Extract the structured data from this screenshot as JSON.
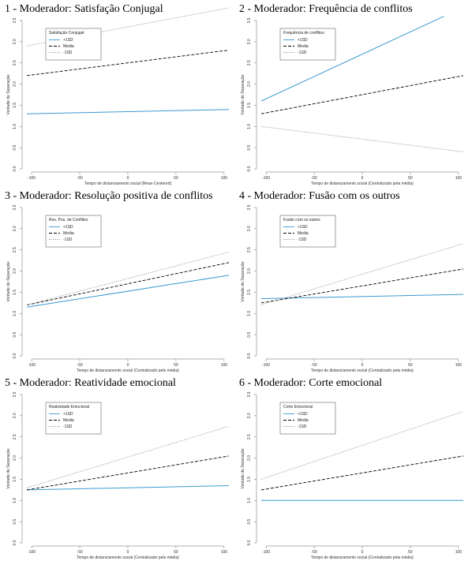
{
  "chart_data": [
    {
      "type": "line",
      "title": "1 - Moderador: Satisfação Conjugal",
      "xlabel": "Tempo de distanciamento social (Mean Centered)",
      "ylabel": "Vontade de Separação",
      "xlim": [
        -105,
        105
      ],
      "ylim": [
        0,
        3.5
      ],
      "xticks": [
        "-100",
        "-50",
        "0",
        "50",
        "100"
      ],
      "yticks": [
        "0.0",
        "0.5",
        "1.0",
        "1.5",
        "2.0",
        "2.5",
        "3.0",
        "3.5"
      ],
      "legend_title": "Satisfação Conjugal",
      "series": [
        {
          "name": "+1SD",
          "style": "solid",
          "color": "#3a9ad0",
          "x": [
            -105,
            105
          ],
          "y": [
            1.3,
            1.4
          ]
        },
        {
          "name": "Media",
          "style": "dashed",
          "color": "#000000",
          "x": [
            -105,
            105
          ],
          "y": [
            2.2,
            2.8
          ]
        },
        {
          "name": "-1SD",
          "style": "dotted",
          "color": "#999999",
          "x": [
            -105,
            105
          ],
          "y": [
            2.9,
            3.8
          ]
        }
      ]
    },
    {
      "type": "line",
      "title": "2 - Moderador: Frequência de conflitos",
      "xlabel": "Tempo de distanciamento social (Centralizado pela média)",
      "ylabel": "Vontade de Separação",
      "xlim": [
        -105,
        105
      ],
      "ylim": [
        0,
        3.5
      ],
      "xticks": [
        "-100",
        "-50",
        "0",
        "50",
        "100"
      ],
      "yticks": [
        "0.0",
        "0.5",
        "1.0",
        "1.5",
        "2.0",
        "2.5",
        "3.0",
        "3.5"
      ],
      "legend_title": "Frequência de conflitos",
      "series": [
        {
          "name": "+1SD",
          "style": "solid",
          "color": "#3a9ad0",
          "x": [
            -105,
            85
          ],
          "y": [
            1.6,
            3.6
          ]
        },
        {
          "name": "Media",
          "style": "dashed",
          "color": "#000000",
          "x": [
            -105,
            105
          ],
          "y": [
            1.3,
            2.2
          ]
        },
        {
          "name": "-1SD",
          "style": "dotted",
          "color": "#999999",
          "x": [
            -105,
            105
          ],
          "y": [
            1.0,
            0.4
          ]
        }
      ]
    },
    {
      "type": "line",
      "title": "3 - Moderador: Resolução positiva de conflitos",
      "xlabel": "Tempo de distanciamento social (Centralizado pela média)",
      "ylabel": "Vontade de Separação",
      "xlim": [
        -105,
        105
      ],
      "ylim": [
        0,
        3.5
      ],
      "xticks": [
        "-100",
        "-50",
        "0",
        "50",
        "100"
      ],
      "yticks": [
        "0.0",
        "0.5",
        "1.0",
        "1.5",
        "2.0",
        "2.5",
        "3.0",
        "3.5"
      ],
      "legend_title": "Res. Pos. de Conflitos",
      "series": [
        {
          "name": "+1SD",
          "style": "solid",
          "color": "#3a9ad0",
          "x": [
            -105,
            105
          ],
          "y": [
            1.15,
            1.9
          ]
        },
        {
          "name": "Media",
          "style": "dashed",
          "color": "#000000",
          "x": [
            -105,
            105
          ],
          "y": [
            1.2,
            2.2
          ]
        },
        {
          "name": "-1SD",
          "style": "dotted",
          "color": "#999999",
          "x": [
            -105,
            105
          ],
          "y": [
            1.2,
            2.45
          ]
        }
      ]
    },
    {
      "type": "line",
      "title": "4 - Moderador: Fusão com os outros",
      "xlabel": "Tempo de distanciamento social (Centralizado pela média)",
      "ylabel": "Vontade de Separação",
      "xlim": [
        -105,
        105
      ],
      "ylim": [
        0,
        3.5
      ],
      "xticks": [
        "-100",
        "-50",
        "0",
        "50",
        "100"
      ],
      "yticks": [
        "0.0",
        "0.5",
        "1.0",
        "1.5",
        "2.0",
        "2.5",
        "3.0",
        "3.5"
      ],
      "legend_title": "Fusão com os outros",
      "series": [
        {
          "name": "+1SD",
          "style": "solid",
          "color": "#3a9ad0",
          "x": [
            -105,
            105
          ],
          "y": [
            1.35,
            1.45
          ]
        },
        {
          "name": "Media",
          "style": "dashed",
          "color": "#000000",
          "x": [
            -105,
            105
          ],
          "y": [
            1.25,
            2.05
          ]
        },
        {
          "name": "-1SD",
          "style": "dotted",
          "color": "#999999",
          "x": [
            -105,
            105
          ],
          "y": [
            1.2,
            2.65
          ]
        }
      ]
    },
    {
      "type": "line",
      "title": "5 - Moderador: Reatividade emocional",
      "xlabel": "Tempo de distanciamento social (Centralizado pela média)",
      "ylabel": "Vontade de Separação",
      "xlim": [
        -105,
        105
      ],
      "ylim": [
        0,
        3.5
      ],
      "xticks": [
        "-100",
        "-50",
        "0",
        "50",
        "100"
      ],
      "yticks": [
        "0.0",
        "0.5",
        "1.0",
        "1.5",
        "2.0",
        "2.5",
        "3.0",
        "3.5"
      ],
      "legend_title": "Reatividade Emocional",
      "series": [
        {
          "name": "+1SD",
          "style": "solid",
          "color": "#3a9ad0",
          "x": [
            -105,
            105
          ],
          "y": [
            1.25,
            1.35
          ]
        },
        {
          "name": "Media",
          "style": "dashed",
          "color": "#000000",
          "x": [
            -105,
            105
          ],
          "y": [
            1.25,
            2.05
          ]
        },
        {
          "name": "-1SD",
          "style": "dotted",
          "color": "#999999",
          "x": [
            -105,
            105
          ],
          "y": [
            1.3,
            2.75
          ]
        }
      ]
    },
    {
      "type": "line",
      "title": "6 - Moderador: Corte emocional",
      "xlabel": "Tempo de distanciamento social (Centralizado pela média)",
      "ylabel": "Vontade de Separação",
      "xlim": [
        -105,
        105
      ],
      "ylim": [
        0,
        3.5
      ],
      "xticks": [
        "-100",
        "-50",
        "0",
        "50",
        "100"
      ],
      "yticks": [
        "0.0",
        "0.5",
        "1.0",
        "1.5",
        "2.0",
        "2.5",
        "3.0",
        "3.5"
      ],
      "legend_title": "Corte Emocional",
      "series": [
        {
          "name": "+1SD",
          "style": "solid",
          "color": "#3a9ad0",
          "x": [
            -105,
            105
          ],
          "y": [
            1.0,
            1.0
          ]
        },
        {
          "name": "Media",
          "style": "dashed",
          "color": "#000000",
          "x": [
            -105,
            105
          ],
          "y": [
            1.25,
            2.05
          ]
        },
        {
          "name": "-1SD",
          "style": "dotted",
          "color": "#999999",
          "x": [
            -105,
            105
          ],
          "y": [
            1.5,
            3.1
          ]
        }
      ]
    }
  ]
}
